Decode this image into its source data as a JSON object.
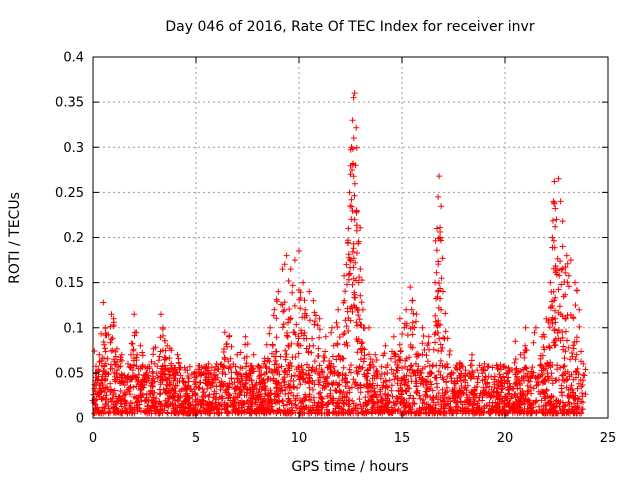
{
  "chart_data": {
    "type": "scatter",
    "title": "Day 046 of 2016, Rate Of TEC Index for receiver invr",
    "xlabel": "GPS time / hours",
    "ylabel": "ROTI / TECUs",
    "xlim": [
      0,
      25
    ],
    "ylim": [
      0,
      0.4
    ],
    "xticks": [
      0,
      5,
      10,
      15,
      20,
      25
    ],
    "xtick_labels": [
      "0",
      "5",
      "10",
      "15",
      "20",
      "25"
    ],
    "yticks": [
      0,
      0.05,
      0.1,
      0.15,
      0.2,
      0.25,
      0.3,
      0.35,
      0.4
    ],
    "ytick_labels": [
      "0",
      "0.05",
      "0.1",
      "0.15",
      "0.2",
      "0.25",
      "0.3",
      "0.35",
      "0.4"
    ],
    "grid": true,
    "marker": "+",
    "marker_color": "#ff0000",
    "series": [
      {
        "name": "ROTI",
        "points": [
          [
            0.1,
            0.03
          ],
          [
            0.3,
            0.07
          ],
          [
            0.5,
            0.128
          ],
          [
            0.6,
            0.1
          ],
          [
            0.9,
            0.115
          ],
          [
            1.0,
            0.11
          ],
          [
            1.4,
            0.07
          ],
          [
            1.7,
            0.06
          ],
          [
            2.0,
            0.115
          ],
          [
            2.1,
            0.095
          ],
          [
            2.3,
            0.08
          ],
          [
            2.6,
            0.05
          ],
          [
            3.0,
            0.06
          ],
          [
            3.3,
            0.115
          ],
          [
            3.4,
            0.1
          ],
          [
            3.6,
            0.08
          ],
          [
            3.8,
            0.075
          ],
          [
            4.1,
            0.07
          ],
          [
            4.4,
            0.04
          ],
          [
            5.0,
            0.04
          ],
          [
            5.6,
            0.06
          ],
          [
            6.0,
            0.06
          ],
          [
            6.4,
            0.095
          ],
          [
            6.6,
            0.09
          ],
          [
            7.0,
            0.07
          ],
          [
            7.4,
            0.09
          ],
          [
            7.8,
            0.07
          ],
          [
            8.3,
            0.06
          ],
          [
            8.6,
            0.1
          ],
          [
            8.8,
            0.12
          ],
          [
            9.0,
            0.14
          ],
          [
            9.2,
            0.165
          ],
          [
            9.4,
            0.18
          ],
          [
            9.6,
            0.165
          ],
          [
            9.8,
            0.175
          ],
          [
            10.0,
            0.185
          ],
          [
            10.2,
            0.15
          ],
          [
            10.3,
            0.12
          ],
          [
            10.5,
            0.14
          ],
          [
            10.7,
            0.13
          ],
          [
            11.0,
            0.11
          ],
          [
            11.3,
            0.09
          ],
          [
            11.6,
            0.1
          ],
          [
            11.9,
            0.12
          ],
          [
            12.2,
            0.13
          ],
          [
            12.3,
            0.17
          ],
          [
            12.4,
            0.21
          ],
          [
            12.45,
            0.25
          ],
          [
            12.5,
            0.27
          ],
          [
            12.55,
            0.3
          ],
          [
            12.6,
            0.33
          ],
          [
            12.65,
            0.355
          ],
          [
            12.7,
            0.36
          ],
          [
            12.75,
            0.28
          ],
          [
            12.8,
            0.23
          ],
          [
            12.9,
            0.15
          ],
          [
            13.1,
            0.12
          ],
          [
            13.4,
            0.1
          ],
          [
            13.7,
            0.07
          ],
          [
            14.2,
            0.08
          ],
          [
            14.6,
            0.09
          ],
          [
            14.9,
            0.11
          ],
          [
            15.2,
            0.12
          ],
          [
            15.4,
            0.145
          ],
          [
            15.5,
            0.13
          ],
          [
            15.7,
            0.115
          ],
          [
            16.0,
            0.1
          ],
          [
            16.3,
            0.09
          ],
          [
            16.6,
            0.15
          ],
          [
            16.7,
            0.21
          ],
          [
            16.75,
            0.245
          ],
          [
            16.8,
            0.268
          ],
          [
            16.85,
            0.2
          ],
          [
            16.9,
            0.12
          ],
          [
            17.3,
            0.07
          ],
          [
            17.8,
            0.06
          ],
          [
            18.4,
            0.07
          ],
          [
            19.0,
            0.06
          ],
          [
            19.6,
            0.04
          ],
          [
            20.1,
            0.05
          ],
          [
            20.5,
            0.085
          ],
          [
            21.0,
            0.1
          ],
          [
            21.5,
            0.1
          ],
          [
            21.8,
            0.09
          ],
          [
            22.0,
            0.11
          ],
          [
            22.2,
            0.15
          ],
          [
            22.3,
            0.2
          ],
          [
            22.35,
            0.24
          ],
          [
            22.4,
            0.262
          ],
          [
            22.5,
            0.22
          ],
          [
            22.6,
            0.265
          ],
          [
            22.7,
            0.24
          ],
          [
            22.8,
            0.19
          ],
          [
            23.0,
            0.18
          ],
          [
            23.2,
            0.175
          ],
          [
            23.4,
            0.15
          ],
          [
            23.6,
            0.12
          ],
          [
            23.8,
            0.06
          ]
        ],
        "noise_band": {
          "x_range": [
            0.05,
            23.8
          ],
          "baseline": [
            0.005,
            0.05
          ],
          "count": 2600
        }
      }
    ]
  }
}
